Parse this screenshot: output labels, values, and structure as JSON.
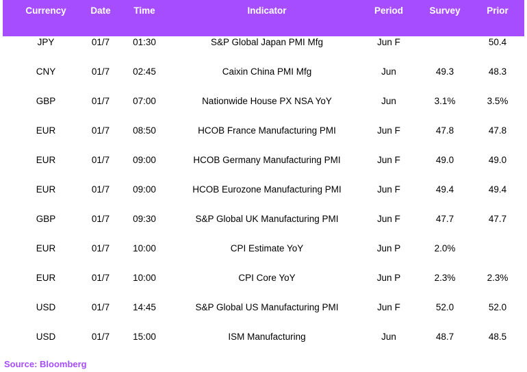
{
  "table": {
    "headers": [
      "Currency",
      "Date",
      "Time",
      "Indicator",
      "Period",
      "Survey",
      "Prior"
    ],
    "rows": [
      [
        "JPY",
        "01/7",
        "01:30",
        "S&P Global Japan PMI Mfg",
        "Jun F",
        "",
        "50.4"
      ],
      [
        "CNY",
        "01/7",
        "02:45",
        "Caixin China PMI Mfg",
        "Jun",
        "49.3",
        "48.3"
      ],
      [
        "GBP",
        "01/7",
        "07:00",
        "Nationwide House PX NSA YoY",
        "Jun",
        "3.1%",
        "3.5%"
      ],
      [
        "EUR",
        "01/7",
        "08:50",
        "HCOB France Manufacturing PMI",
        "Jun F",
        "47.8",
        "47.8"
      ],
      [
        "EUR",
        "01/7",
        "09:00",
        "HCOB Germany Manufacturing PMI",
        "Jun F",
        "49.0",
        "49.0"
      ],
      [
        "EUR",
        "01/7",
        "09:00",
        "HCOB Eurozone Manufacturing PMI",
        "Jun F",
        "49.4",
        "49.4"
      ],
      [
        "GBP",
        "01/7",
        "09:30",
        "S&P Global UK Manufacturing PMI",
        "Jun F",
        "47.7",
        "47.7"
      ],
      [
        "EUR",
        "01/7",
        "10:00",
        "CPI Estimate YoY",
        "Jun P",
        "2.0%",
        ""
      ],
      [
        "EUR",
        "01/7",
        "10:00",
        "CPI Core YoY",
        "Jun P",
        "2.3%",
        "2.3%"
      ],
      [
        "USD",
        "01/7",
        "14:45",
        "S&P Global US Manufacturing PMI",
        "Jun F",
        "52.0",
        "52.0"
      ],
      [
        "USD",
        "01/7",
        "15:00",
        "ISM Manufacturing",
        "Jun",
        "48.7",
        "48.5"
      ]
    ]
  },
  "source": "Source: Bloomberg",
  "colors": {
    "header_bg": "#a64dff",
    "header_text": "#ffffff",
    "source_text": "#a64dff"
  }
}
